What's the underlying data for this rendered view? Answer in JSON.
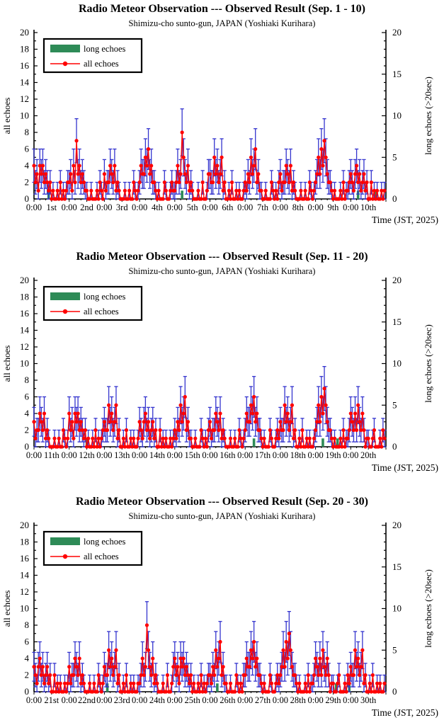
{
  "page": {
    "background": "#FFFFFF"
  },
  "palette": {
    "all_echoes": "#FF0000",
    "long_echoes": "#2E8B57",
    "error_bar": "#3434CE",
    "axis": "#000000",
    "legend_border": "#000000"
  },
  "chart_data": [
    {
      "type": "line",
      "title": "Radio Meteor Observation --- Observed Result (Sep. 1 - 10)",
      "subtitle": "Shimizu-cho sunto-gun, JAPAN (Yoshiaki Kurihara)",
      "xlabel": "Time (JST, 2025)",
      "ylabel_left": "all echoes",
      "ylabel_right": "long echoes (>20sec)",
      "ylim": [
        0,
        20
      ],
      "y_ticks_left": [
        0,
        2,
        4,
        6,
        8,
        10,
        12,
        14,
        16,
        18,
        20
      ],
      "y_ticks_right": [
        0,
        5,
        10,
        15,
        20
      ],
      "x_tick_labels": [
        "0:00",
        "1st",
        "0:00",
        "2nd",
        "0:00",
        "3rd",
        "0:00",
        "4th",
        "0:00",
        "5th",
        "0:00",
        "6th",
        "0:00",
        "7th",
        "0:00",
        "8th",
        "0:00",
        "9th",
        "0:00",
        "10th"
      ],
      "hours_between_labels": 12,
      "n_points": 240,
      "error_bar": "sqrt(value)",
      "legend": [
        "long echoes",
        "all echoes"
      ],
      "grid": false,
      "legend_position": "upper-left",
      "series": [
        {
          "name": "all echoes",
          "values": [
            4,
            2,
            3,
            1,
            4,
            3,
            4,
            2,
            3,
            2,
            1,
            2,
            0,
            1,
            0,
            0,
            1,
            0,
            2,
            0,
            1,
            0,
            1,
            2,
            2,
            3,
            1,
            4,
            2,
            7,
            3,
            4,
            2,
            3,
            2,
            1,
            1,
            0,
            0,
            1,
            0,
            0,
            0,
            1,
            0,
            2,
            1,
            0,
            3,
            1,
            2,
            2,
            4,
            3,
            2,
            4,
            1,
            2,
            1,
            0,
            0,
            0,
            1,
            0,
            0,
            1,
            0,
            0,
            2,
            1,
            0,
            1,
            2,
            4,
            3,
            3,
            5,
            4,
            6,
            3,
            4,
            2,
            2,
            1,
            0,
            1,
            0,
            0,
            0,
            2,
            1,
            0,
            0,
            1,
            2,
            1,
            1,
            2,
            4,
            2,
            3,
            8,
            5,
            3,
            2,
            4,
            1,
            2,
            1,
            0,
            0,
            0,
            1,
            0,
            0,
            2,
            0,
            0,
            1,
            3,
            3,
            2,
            2,
            5,
            3,
            4,
            2,
            3,
            5,
            1,
            2,
            0,
            0,
            1,
            0,
            2,
            0,
            0,
            1,
            0,
            1,
            0,
            0,
            1,
            2,
            1,
            3,
            2,
            5,
            3,
            4,
            6,
            2,
            3,
            1,
            1,
            0,
            0,
            1,
            0,
            0,
            0,
            2,
            1,
            0,
            1,
            0,
            2,
            3,
            1,
            2,
            2,
            4,
            3,
            2,
            4,
            1,
            2,
            1,
            0,
            0,
            0,
            1,
            0,
            0,
            1,
            0,
            0,
            2,
            1,
            0,
            1,
            2,
            3,
            5,
            3,
            6,
            4,
            7,
            5,
            3,
            2,
            2,
            1,
            0,
            1,
            0,
            0,
            0,
            1,
            0,
            2,
            0,
            1,
            1,
            2,
            3,
            2,
            1,
            3,
            4,
            2,
            3,
            1,
            2,
            3,
            1,
            2,
            0,
            0,
            2,
            0,
            1,
            0,
            1,
            0,
            0,
            1,
            0,
            1
          ]
        },
        {
          "name": "long echoes",
          "value": 1,
          "hours": [
            10,
            101,
            221,
            233
          ]
        }
      ]
    },
    {
      "type": "line",
      "title": "Radio Meteor Observation --- Observed Result (Sep. 11 - 20)",
      "subtitle": "Shimizu-cho sunto-gun, JAPAN (Yoshiaki Kurihara)",
      "xlabel": "Time (JST, 2025)",
      "ylabel_left": "all echoes",
      "ylabel_right": "long echoes (>20sec)",
      "ylim": [
        0,
        20
      ],
      "y_ticks_left": [
        0,
        2,
        4,
        6,
        8,
        10,
        12,
        14,
        16,
        18,
        20
      ],
      "y_ticks_right": [
        0,
        5,
        10,
        15,
        20
      ],
      "x_tick_labels": [
        "0:00",
        "11th",
        "0:00",
        "12th",
        "0:00",
        "13th",
        "0:00",
        "14th",
        "0:00",
        "15th",
        "0:00",
        "16th",
        "0:00",
        "17th",
        "0:00",
        "18th",
        "0:00",
        "19th",
        "0:00",
        "20th"
      ],
      "hours_between_labels": 12,
      "n_points": 240,
      "error_bar": "sqrt(value)",
      "legend": [
        "long echoes",
        "all echoes"
      ],
      "grid": false,
      "legend_position": "upper-left",
      "series": [
        {
          "name": "all echoes",
          "values": [
            3,
            1,
            2,
            2,
            4,
            3,
            2,
            4,
            1,
            2,
            1,
            0,
            0,
            0,
            1,
            0,
            0,
            1,
            0,
            0,
            2,
            1,
            0,
            1,
            4,
            2,
            3,
            1,
            4,
            3,
            4,
            2,
            3,
            2,
            1,
            2,
            0,
            1,
            0,
            0,
            1,
            0,
            2,
            0,
            1,
            0,
            1,
            2,
            3,
            2,
            2,
            5,
            3,
            4,
            2,
            3,
            5,
            1,
            2,
            0,
            0,
            1,
            0,
            2,
            0,
            0,
            1,
            0,
            1,
            0,
            0,
            1,
            3,
            2,
            1,
            3,
            4,
            2,
            3,
            1,
            2,
            3,
            1,
            2,
            0,
            0,
            2,
            0,
            1,
            0,
            1,
            0,
            0,
            1,
            0,
            1,
            2,
            1,
            3,
            2,
            5,
            3,
            4,
            6,
            2,
            3,
            1,
            1,
            0,
            0,
            1,
            0,
            0,
            0,
            2,
            1,
            0,
            1,
            0,
            2,
            3,
            1,
            2,
            2,
            4,
            3,
            2,
            4,
            1,
            2,
            1,
            0,
            0,
            0,
            1,
            0,
            0,
            1,
            0,
            0,
            2,
            1,
            0,
            1,
            2,
            4,
            3,
            3,
            5,
            4,
            6,
            3,
            4,
            2,
            2,
            1,
            0,
            1,
            0,
            0,
            0,
            2,
            1,
            0,
            0,
            1,
            2,
            1,
            3,
            2,
            2,
            5,
            3,
            4,
            2,
            3,
            5,
            1,
            2,
            0,
            0,
            1,
            0,
            2,
            0,
            0,
            1,
            0,
            1,
            0,
            0,
            1,
            2,
            3,
            5,
            3,
            6,
            4,
            7,
            5,
            3,
            2,
            2,
            1,
            0,
            1,
            0,
            0,
            0,
            1,
            0,
            2,
            0,
            1,
            1,
            2,
            4,
            3,
            2,
            4,
            2,
            5,
            3,
            2,
            4,
            2,
            0,
            1,
            1,
            0,
            0,
            1,
            2,
            0,
            0,
            0,
            1,
            0,
            2,
            1
          ]
        },
        {
          "name": "long echoes",
          "value": 1,
          "hours": [
            36,
            150,
            197,
            207
          ]
        }
      ]
    },
    {
      "type": "line",
      "title": "Radio Meteor Observation --- Observed Result (Sep. 20 - 30)",
      "subtitle": "Shimizu-cho sunto-gun, JAPAN (Yoshiaki Kurihara)",
      "xlabel": "Time (JST, 2025)",
      "ylabel_left": "all echoes",
      "ylabel_right": "long echoes (>20sec)",
      "ylim": [
        0,
        20
      ],
      "y_ticks_left": [
        0,
        2,
        4,
        6,
        8,
        10,
        12,
        14,
        16,
        18,
        20
      ],
      "y_ticks_right": [
        0,
        5,
        10,
        15,
        20
      ],
      "x_tick_labels": [
        "0:00",
        "21st",
        "0:00",
        "22nd",
        "0:00",
        "23rd",
        "0:00",
        "24th",
        "0:00",
        "25th",
        "0:00",
        "26th",
        "0:00",
        "27th",
        "0:00",
        "28th",
        "0:00",
        "29th",
        "0:00",
        "30th"
      ],
      "hours_between_labels": 12,
      "n_points": 240,
      "error_bar": "sqrt(value)",
      "legend": [
        "long echoes",
        "all echoes"
      ],
      "grid": false,
      "legend_position": "upper-left",
      "series": [
        {
          "name": "all echoes",
          "values": [
            3,
            2,
            1,
            3,
            4,
            2,
            3,
            1,
            2,
            3,
            1,
            2,
            0,
            0,
            2,
            0,
            1,
            0,
            1,
            0,
            0,
            1,
            0,
            1,
            3,
            1,
            2,
            2,
            4,
            3,
            2,
            4,
            1,
            2,
            1,
            0,
            0,
            0,
            1,
            0,
            0,
            1,
            0,
            0,
            2,
            1,
            0,
            1,
            3,
            2,
            2,
            5,
            3,
            4,
            2,
            3,
            5,
            1,
            2,
            0,
            0,
            1,
            0,
            2,
            0,
            0,
            1,
            0,
            1,
            0,
            0,
            1,
            1,
            2,
            4,
            2,
            3,
            8,
            5,
            3,
            2,
            4,
            1,
            2,
            1,
            0,
            0,
            0,
            1,
            0,
            0,
            2,
            0,
            0,
            1,
            3,
            4,
            2,
            3,
            1,
            4,
            3,
            4,
            2,
            3,
            2,
            1,
            2,
            0,
            1,
            0,
            0,
            1,
            0,
            2,
            0,
            1,
            0,
            1,
            2,
            2,
            1,
            3,
            2,
            5,
            3,
            4,
            6,
            2,
            3,
            1,
            1,
            0,
            0,
            1,
            0,
            0,
            0,
            2,
            1,
            0,
            1,
            0,
            2,
            2,
            4,
            3,
            3,
            5,
            4,
            6,
            3,
            4,
            2,
            2,
            1,
            0,
            1,
            0,
            0,
            0,
            2,
            1,
            0,
            0,
            1,
            2,
            1,
            2,
            3,
            5,
            3,
            6,
            4,
            7,
            5,
            3,
            2,
            2,
            1,
            0,
            1,
            0,
            0,
            0,
            1,
            0,
            2,
            0,
            1,
            1,
            2,
            4,
            3,
            2,
            4,
            2,
            5,
            3,
            2,
            4,
            2,
            0,
            1,
            1,
            0,
            0,
            1,
            2,
            0,
            0,
            0,
            1,
            0,
            2,
            1,
            3,
            2,
            2,
            5,
            3,
            4,
            2,
            3,
            5,
            1,
            2,
            0,
            0,
            1,
            0,
            2,
            0,
            0,
            1,
            0,
            1,
            0,
            0,
            1
          ]
        },
        {
          "name": "long echoes",
          "value": 1,
          "hours": [
            50,
            125,
            206,
            215
          ]
        }
      ]
    }
  ]
}
